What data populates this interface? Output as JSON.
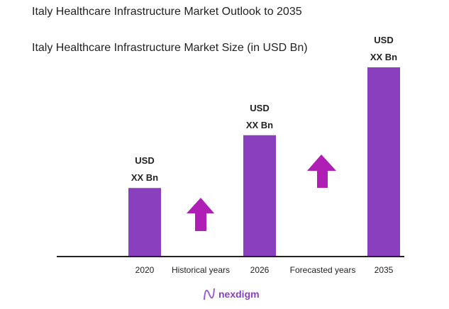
{
  "chart_data": {
    "type": "bar",
    "title": "Italy Healthcare Infrastructure Market Outlook to 2035",
    "subtitle": "Italy Healthcare Infrastructure Market Size (in USD Bn)",
    "categories": [
      "2020",
      "2026",
      "2035"
    ],
    "values": [
      36,
      64,
      100
    ],
    "data_labels": [
      [
        "USD",
        "XX Bn"
      ],
      [
        "USD",
        "XX Bn"
      ],
      [
        "USD",
        "XX Bn"
      ]
    ],
    "period_labels": [
      "Historical years",
      "Forecasted years"
    ],
    "bar_color": "#8A3FBE",
    "arrow_color": "#B01FB5",
    "grid": false
  },
  "logo": {
    "text": "nexdigm",
    "color": "#8A3FC8"
  }
}
